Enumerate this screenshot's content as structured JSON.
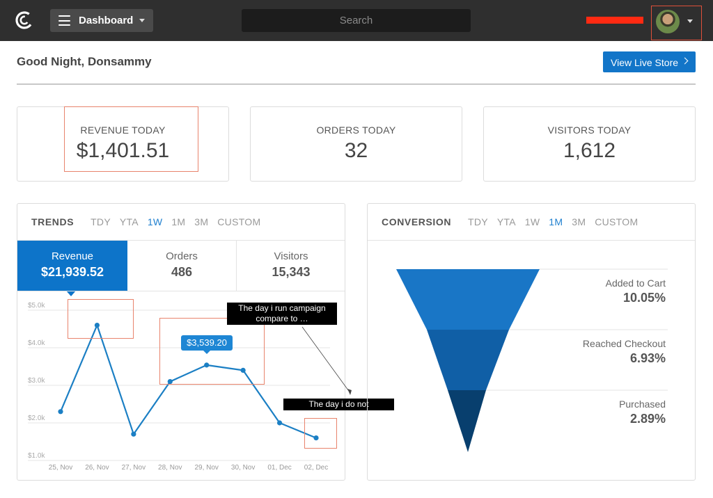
{
  "header": {
    "nav_button_label": "Dashboard",
    "search_placeholder": "Search",
    "avatar_icon": "user-avatar"
  },
  "greeting": "Good Night, Donsammy",
  "live_store_label": "View Live Store",
  "stats": [
    {
      "label": "REVENUE TODAY",
      "value": "$1,401.51"
    },
    {
      "label": "ORDERS TODAY",
      "value": "32"
    },
    {
      "label": "VISITORS TODAY",
      "value": "1,612"
    }
  ],
  "trends": {
    "title": "TRENDS",
    "tabs": [
      "TDY",
      "YTA",
      "1W",
      "1M",
      "3M",
      "CUSTOM"
    ],
    "active_tab": "1W",
    "metrics": [
      {
        "label": "Revenue",
        "value": "$21,939.52"
      },
      {
        "label": "Orders",
        "value": "486"
      },
      {
        "label": "Visitors",
        "value": "15,343"
      }
    ],
    "tooltip": "$3,539.20",
    "annotations": {
      "campaign": "The day i run campaign compare to …",
      "notrun": "The day i do not"
    }
  },
  "conversion": {
    "title": "CONVERSION",
    "tabs": [
      "TDY",
      "YTA",
      "1W",
      "1M",
      "3M",
      "CUSTOM"
    ],
    "active_tab": "1M",
    "stages": [
      {
        "label": "Added to Cart",
        "value": "10.05%"
      },
      {
        "label": "Reached Checkout",
        "value": "6.93%"
      },
      {
        "label": "Purchased",
        "value": "2.89%"
      }
    ],
    "colors": [
      "#1976c6",
      "#105fa6",
      "#083f6e"
    ]
  },
  "chart_data": {
    "type": "line",
    "x": [
      "25, Nov",
      "26, Nov",
      "27, Nov",
      "28, Nov",
      "29, Nov",
      "30, Nov",
      "01, Dec",
      "02, Dec"
    ],
    "series": [
      {
        "values": [
          2300,
          4600,
          1700,
          3100,
          3539.2,
          3400,
          2000,
          1600
        ]
      }
    ],
    "yticks": [
      "$1.0k",
      "$2.0k",
      "$3.0k",
      "$4.0k",
      "$5.0k"
    ],
    "ylim": [
      1000,
      5000
    ],
    "color": "#1b7fc4",
    "grid": true
  }
}
